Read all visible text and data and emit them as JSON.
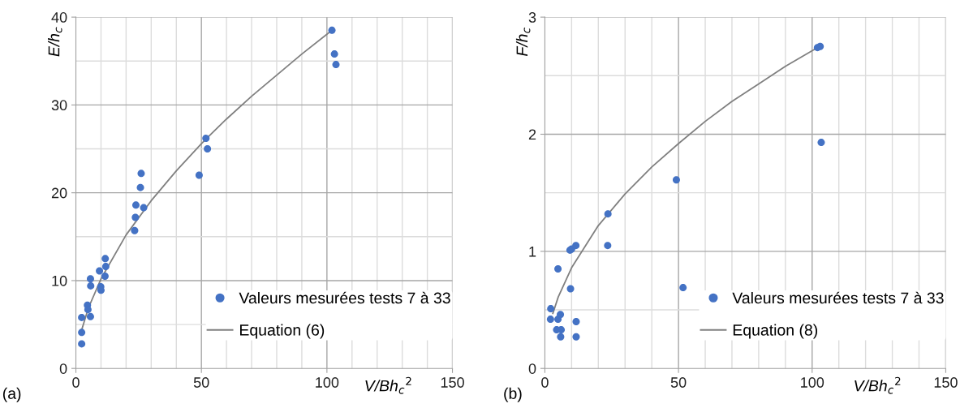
{
  "chart_data": [
    {
      "type": "scatter",
      "xlabel": "V/Bh$_{c}$$^{2}$",
      "ylabel": "E/h$_{c}$",
      "annotations": [
        "(a)"
      ],
      "xlim": [
        0,
        150
      ],
      "ylim": [
        0,
        40
      ],
      "xticks": [
        0,
        {
          "value": 10,
          "label": null
        },
        {
          "value": 20,
          "label": null
        },
        {
          "value": 30,
          "label": null
        },
        {
          "value": 40,
          "label": null
        },
        50,
        {
          "value": 60,
          "label": null
        },
        {
          "value": 70,
          "label": null
        },
        {
          "value": 80,
          "label": null
        },
        {
          "value": 90,
          "label": null
        },
        100,
        {
          "value": 110,
          "label": null
        },
        {
          "value": 120,
          "label": null
        },
        {
          "value": 130,
          "label": null
        },
        {
          "value": 140,
          "label": null
        },
        150
      ],
      "yticks": [
        0,
        {
          "value": 5,
          "label": null
        },
        10,
        {
          "value": 15,
          "label": null
        },
        20,
        {
          "value": 25,
          "label": null
        },
        30,
        {
          "value": 35,
          "label": null
        },
        40
      ],
      "grid": true,
      "legend": "bottom right",
      "marker": "circle",
      "series": [
        {
          "name": "Valeurs mesurées tests 7 à 33",
          "color": "#4472c4",
          "x": [
            102.0,
            103.0,
            103.6,
            51.8,
            52.4,
            49.1,
            26.0,
            25.7,
            23.9,
            27.0,
            23.7,
            23.4,
            11.7,
            11.9,
            9.4,
            11.6,
            5.8,
            5.9,
            9.9,
            10.0,
            4.6,
            4.8,
            5.8,
            2.3,
            2.3,
            2.3
          ],
          "values": [
            38.5,
            35.8,
            34.6,
            26.2,
            25.0,
            22.0,
            22.2,
            20.6,
            18.6,
            18.3,
            17.2,
            15.7,
            12.5,
            11.6,
            11.1,
            10.5,
            10.2,
            9.4,
            9.3,
            8.9,
            7.2,
            6.7,
            5.9,
            5.8,
            4.1,
            2.8
          ]
        },
        {
          "name": "Equation (6)",
          "type": "line",
          "color": "#808080",
          "marker": "none",
          "line_style": "solid",
          "x": [
            2,
            5,
            10,
            20,
            30,
            40,
            50,
            60,
            70,
            80,
            90,
            102
          ],
          "values": [
            4.1,
            6.9,
            10.2,
            15.2,
            19.1,
            22.5,
            25.6,
            28.4,
            31.0,
            33.4,
            35.8,
            38.5
          ]
        }
      ]
    },
    {
      "type": "scatter",
      "xlabel": "V/Bh$_{c}$$^{2}$",
      "ylabel": "F/h$_{c}$",
      "annotations": [
        "(b)"
      ],
      "xlim": [
        0,
        150
      ],
      "ylim": [
        0,
        3
      ],
      "xticks": [
        0,
        {
          "value": 10,
          "label": null
        },
        {
          "value": 20,
          "label": null
        },
        {
          "value": 30,
          "label": null
        },
        {
          "value": 40,
          "label": null
        },
        50,
        {
          "value": 60,
          "label": null
        },
        {
          "value": 70,
          "label": null
        },
        {
          "value": 80,
          "label": null
        },
        {
          "value": 90,
          "label": null
        },
        100,
        {
          "value": 110,
          "label": null
        },
        {
          "value": 120,
          "label": null
        },
        {
          "value": 130,
          "label": null
        },
        {
          "value": 140,
          "label": null
        },
        150
      ],
      "yticks": [
        0,
        {
          "value": 0.5,
          "label": null
        },
        1,
        {
          "value": 1.5,
          "label": null
        },
        2,
        {
          "value": 2.5,
          "label": null
        },
        3
      ],
      "grid": true,
      "legend": "bottom right",
      "marker": "circle",
      "series": [
        {
          "name": "Valeurs mesurées tests 7 à 33",
          "color": "#4472c4",
          "x": [
            102.0,
            103.0,
            103.4,
            49.2,
            23.6,
            23.5,
            9.4,
            10.0,
            11.6,
            4.9,
            9.6,
            51.7,
            2.2,
            2.1,
            4.9,
            5.8,
            11.7,
            4.4,
            6.1,
            5.9,
            11.7
          ],
          "values": [
            2.74,
            2.75,
            1.93,
            1.61,
            1.32,
            1.05,
            1.01,
            1.02,
            1.05,
            0.85,
            0.68,
            0.69,
            0.51,
            0.42,
            0.42,
            0.46,
            0.4,
            0.33,
            0.33,
            0.27,
            0.27
          ]
        },
        {
          "name": "Equation (8)",
          "type": "line",
          "color": "#808080",
          "marker": "none",
          "line_style": "solid",
          "x": [
            3,
            5,
            10,
            20,
            30,
            40,
            50,
            60,
            70,
            80,
            90,
            102
          ],
          "values": [
            0.47,
            0.61,
            0.86,
            1.22,
            1.49,
            1.72,
            1.92,
            2.11,
            2.28,
            2.43,
            2.58,
            2.74
          ]
        }
      ]
    }
  ]
}
